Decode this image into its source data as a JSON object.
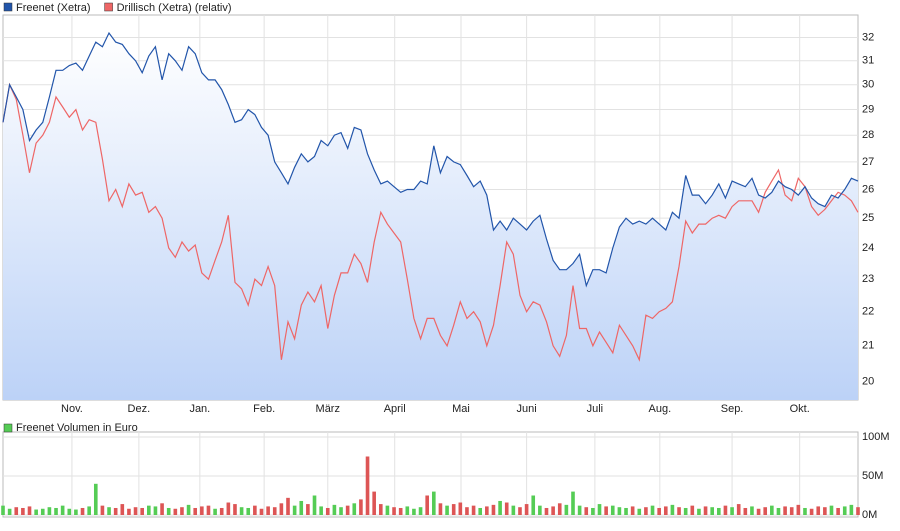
{
  "chart_data": [
    {
      "type": "line",
      "log_scale": true,
      "grid": true,
      "legend": "top-left",
      "area_fill_color": "#bcd2f7",
      "xlim": [
        0,
        129
      ],
      "xticks": [
        {
          "value": 10.4,
          "label": "Nov."
        },
        {
          "value": 20.5,
          "label": "Dez."
        },
        {
          "value": 29.7,
          "label": "Jan."
        },
        {
          "value": 39.4,
          "label": "Feb."
        },
        {
          "value": 49,
          "label": "März"
        },
        {
          "value": 59.1,
          "label": "April"
        },
        {
          "value": 69.1,
          "label": "Mai"
        },
        {
          "value": 79,
          "label": "Juni"
        },
        {
          "value": 89.3,
          "label": "Juli"
        },
        {
          "value": 99.1,
          "label": "Aug."
        },
        {
          "value": 110,
          "label": "Sep."
        },
        {
          "value": 120.2,
          "label": "Okt."
        }
      ],
      "ylim": [
        19.5,
        33
      ],
      "yticks": [
        20,
        21,
        22,
        23,
        24,
        25,
        26,
        27,
        28,
        29,
        30,
        31,
        32
      ],
      "series": [
        {
          "name": "Freenet (Xetra)",
          "color": "#2255aa",
          "values": [
            28.5,
            30.0,
            29.5,
            29.0,
            27.8,
            28.2,
            28.5,
            29.5,
            30.6,
            30.6,
            30.8,
            30.9,
            30.6,
            31.2,
            31.8,
            31.6,
            32.2,
            31.8,
            31.7,
            31.3,
            31.0,
            30.5,
            31.2,
            31.6,
            30.2,
            31.3,
            31.0,
            30.6,
            31.6,
            31.3,
            30.5,
            30.2,
            30.2,
            29.8,
            29.2,
            28.5,
            28.6,
            29.0,
            28.8,
            28.3,
            28.0,
            27.0,
            26.6,
            26.2,
            26.8,
            27.3,
            27.0,
            27.2,
            27.8,
            27.6,
            28.0,
            28.1,
            27.5,
            28.3,
            28.2,
            27.3,
            26.7,
            26.2,
            26.3,
            26.1,
            25.9,
            26.0,
            26.0,
            26.3,
            26.2,
            27.6,
            26.6,
            27.2,
            27.0,
            26.9,
            26.5,
            26.1,
            26.3,
            25.8,
            24.6,
            24.9,
            24.6,
            25.0,
            24.8,
            24.6,
            24.9,
            25.1,
            24.3,
            23.6,
            23.3,
            23.3,
            23.5,
            23.8,
            22.8,
            23.3,
            23.3,
            23.2,
            24.0,
            24.7,
            25.0,
            24.8,
            24.9,
            24.8,
            25.0,
            24.8,
            24.6,
            25.2,
            25.0,
            26.5,
            25.8,
            25.8,
            25.5,
            25.8,
            26.2,
            25.7,
            26.3,
            26.2,
            26.1,
            26.4,
            25.8,
            25.7,
            25.9,
            26.3,
            26.1,
            26.0,
            25.8,
            26.1,
            25.7,
            25.5,
            25.4,
            25.8,
            25.7,
            26.0,
            26.4,
            26.3
          ]
        },
        {
          "name": "Drillisch (Xetra) (relativ)",
          "color": "#ee6666",
          "values": [
            28.5,
            30.0,
            29.4,
            28.0,
            26.6,
            27.7,
            28.0,
            28.5,
            29.5,
            29.1,
            28.7,
            29.0,
            28.2,
            28.6,
            28.5,
            27.1,
            25.6,
            26.0,
            25.4,
            26.2,
            25.8,
            25.9,
            25.2,
            25.4,
            25.0,
            24.0,
            23.7,
            24.2,
            23.9,
            24.1,
            23.2,
            23.0,
            23.6,
            24.2,
            25.1,
            22.9,
            22.7,
            22.2,
            23.0,
            22.8,
            23.4,
            22.8,
            20.6,
            21.7,
            21.2,
            22.2,
            22.6,
            22.3,
            22.8,
            21.5,
            22.5,
            23.2,
            23.2,
            23.8,
            23.5,
            22.9,
            24.2,
            25.2,
            24.8,
            24.5,
            24.2,
            23.0,
            21.8,
            21.2,
            21.8,
            21.8,
            21.3,
            21.0,
            21.6,
            22.3,
            21.8,
            22.0,
            21.7,
            21.0,
            21.6,
            22.8,
            24.2,
            23.8,
            22.5,
            22.0,
            22.3,
            22.2,
            21.7,
            21.0,
            20.7,
            21.3,
            22.8,
            21.5,
            21.5,
            21.0,
            21.4,
            21.1,
            20.8,
            21.6,
            21.3,
            21.0,
            20.6,
            21.9,
            21.8,
            22.0,
            22.1,
            22.3,
            23.4,
            24.9,
            24.5,
            24.8,
            24.8,
            25.0,
            25.1,
            25.0,
            25.4,
            25.6,
            25.6,
            25.6,
            25.2,
            25.9,
            26.3,
            26.7,
            25.8,
            25.6,
            26.4,
            26.1,
            25.4,
            25.1,
            25.3,
            25.6,
            25.9,
            25.8,
            25.6,
            25.2
          ]
        }
      ]
    },
    {
      "type": "bar",
      "grid": true,
      "xlim": [
        0,
        129
      ],
      "down_color": "#dd5555",
      "ylim": [
        0,
        100
      ],
      "yticks": [
        {
          "value": 0,
          "label": "0M"
        },
        {
          "value": 50,
          "label": "50M"
        },
        {
          "value": 100,
          "label": "100M"
        }
      ],
      "series": [
        {
          "name": "Freenet Volumen in Euro",
          "color": "#55cc55",
          "values": [
            12,
            8,
            10,
            9,
            11,
            7,
            8,
            10,
            9,
            12,
            8,
            7,
            9,
            11,
            40,
            12,
            10,
            9,
            14,
            8,
            10,
            9,
            12,
            11,
            15,
            9,
            8,
            10,
            13,
            9,
            11,
            12,
            8,
            9,
            16,
            14,
            10,
            9,
            12,
            8,
            11,
            10,
            15,
            22,
            12,
            18,
            14,
            25,
            11,
            9,
            13,
            10,
            12,
            15,
            20,
            75,
            30,
            14,
            12,
            10,
            9,
            11,
            8,
            10,
            25,
            30,
            15,
            12,
            14,
            16,
            10,
            12,
            9,
            11,
            13,
            18,
            16,
            12,
            10,
            14,
            25,
            12,
            9,
            11,
            15,
            13,
            30,
            12,
            10,
            9,
            14,
            11,
            12,
            10,
            9,
            11,
            8,
            10,
            12,
            9,
            11,
            13,
            10,
            9,
            12,
            8,
            11,
            10,
            9,
            12,
            10,
            14,
            9,
            11,
            8,
            10,
            12,
            9,
            11,
            10,
            13,
            9,
            8,
            11,
            10,
            12,
            9,
            11,
            13,
            10
          ]
        }
      ]
    }
  ]
}
